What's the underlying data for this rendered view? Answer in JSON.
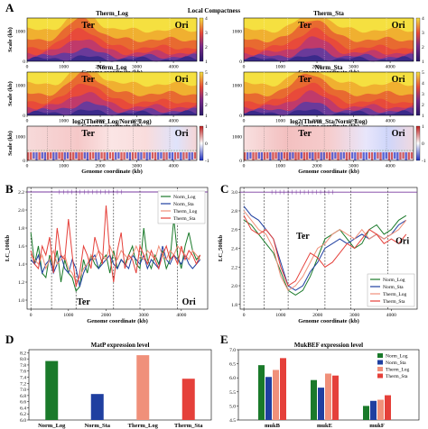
{
  "panels": {
    "A": "A",
    "B": "B",
    "C": "C",
    "D": "D",
    "E": "E"
  },
  "section_title": "Local Compactness",
  "region_labels": {
    "ter": "Ter",
    "ori": "Ori"
  },
  "colors": {
    "Norm_Log": "#1a7a2a",
    "Norm_Sta": "#1f3fa0",
    "Therm_Log": "#f0907a",
    "Therm_Sta": "#e5403a",
    "heat_low": "#2a1a6a",
    "heat_mid": "#e84a3a",
    "heat_high": "#f5e040"
  },
  "chart_data": [
    {
      "id": "A1",
      "type": "heatmap",
      "title": "Therm_Log",
      "xlabel": "Genome coordinate (kb)",
      "ylabel": "Scale (kb)",
      "xticks": [
        0,
        1000,
        2000,
        3000,
        4000
      ],
      "yticks": [
        0,
        1000
      ],
      "colorbar": [
        1,
        2,
        3,
        4
      ],
      "ter_center": 1500
    },
    {
      "id": "A2",
      "type": "heatmap",
      "title": "Therm_Sta",
      "xlabel": "Genome coordinate (kb)",
      "ylabel": "",
      "xticks": [
        0,
        1000,
        2000,
        3000,
        4000
      ],
      "yticks": [
        0,
        1000
      ],
      "colorbar": [
        1,
        2,
        3,
        4
      ],
      "ter_center": 1900
    },
    {
      "id": "A3",
      "type": "heatmap",
      "title": "Norm_Log",
      "xlabel": "Genome coordinate (kb)",
      "ylabel": "Scale (kb)",
      "xticks": [
        0,
        1000,
        2000,
        3000,
        4000
      ],
      "yticks": [
        0,
        1000
      ],
      "colorbar": [
        1,
        2,
        3,
        4,
        5
      ],
      "ter_center": 1600
    },
    {
      "id": "A4",
      "type": "heatmap",
      "title": "Norm_Sta",
      "xlabel": "Genome coordinate (kb)",
      "ylabel": "",
      "xticks": [
        0,
        1000,
        2000,
        3000,
        4000
      ],
      "yticks": [
        0,
        1000
      ],
      "colorbar": [
        1,
        2,
        3,
        4,
        5
      ],
      "ter_center": 1800
    },
    {
      "id": "A5",
      "type": "heatmap",
      "title": "log2(Therm_Log/Norm_Log)",
      "xlabel": "Genome coordinate (kb)",
      "ylabel": "Scale (kb)",
      "xticks": [
        0,
        1000,
        2000,
        3000,
        4000
      ],
      "yticks": [
        0,
        1000
      ],
      "colorbar": [
        -1,
        0,
        1
      ]
    },
    {
      "id": "A6",
      "type": "heatmap",
      "title": "log2(Therm_Sta/Norm_Log)",
      "xlabel": "Genome coordinate (kb)",
      "ylabel": "",
      "xticks": [
        0,
        1000,
        2000,
        3000,
        4000
      ],
      "yticks": [
        0,
        1000
      ],
      "colorbar": [
        -1,
        0,
        1
      ]
    },
    {
      "id": "B",
      "type": "line",
      "xlabel": "Genome coordinate (kb)",
      "ylabel": "LC_100kb",
      "xlim": [
        -100,
        4700
      ],
      "ylim": [
        0.9,
        2.25
      ],
      "xticks": [
        0,
        1000,
        2000,
        3000,
        4000
      ],
      "yticks": [
        1.0,
        1.2,
        1.4,
        1.6,
        1.8,
        2.0,
        2.2
      ],
      "vlines": [
        0,
        550,
        1200,
        2200,
        2900,
        3900
      ],
      "legend": "top-right",
      "x": [
        0,
        100,
        200,
        300,
        400,
        500,
        600,
        700,
        800,
        900,
        1000,
        1100,
        1200,
        1300,
        1400,
        1500,
        1600,
        1700,
        1800,
        1900,
        2000,
        2100,
        2200,
        2300,
        2400,
        2500,
        2600,
        2700,
        2800,
        2900,
        3000,
        3100,
        3200,
        3300,
        3400,
        3500,
        3600,
        3700,
        3800,
        3900,
        4000,
        4100,
        4200,
        4300,
        4400,
        4500
      ],
      "series": [
        {
          "name": "Norm_Log",
          "values": [
            1.75,
            1.4,
            1.6,
            1.3,
            1.25,
            1.5,
            1.35,
            1.55,
            1.2,
            1.45,
            1.3,
            1.25,
            1.1,
            1.15,
            1.45,
            1.3,
            1.5,
            1.4,
            1.35,
            1.45,
            1.5,
            1.3,
            1.55,
            1.35,
            1.45,
            1.4,
            1.5,
            1.6,
            1.4,
            1.35,
            1.8,
            1.45,
            1.35,
            1.5,
            1.4,
            1.55,
            1.35,
            1.45,
            1.9,
            1.5,
            1.35,
            1.6,
            1.75,
            1.55,
            1.45,
            1.5
          ]
        },
        {
          "name": "Norm_Sta",
          "values": [
            1.45,
            1.4,
            1.5,
            1.3,
            1.4,
            1.45,
            1.3,
            1.4,
            1.5,
            1.35,
            1.3,
            1.45,
            1.35,
            1.15,
            1.3,
            1.4,
            1.45,
            1.5,
            1.35,
            1.4,
            1.45,
            1.5,
            1.4,
            1.35,
            1.45,
            1.4,
            1.35,
            1.5,
            1.45,
            1.4,
            1.5,
            1.35,
            1.45,
            1.4,
            1.35,
            1.6,
            1.45,
            1.4,
            1.5,
            1.45,
            1.4,
            1.5,
            1.4,
            1.35,
            1.4,
            1.45
          ]
        },
        {
          "name": "Therm_Log",
          "values": [
            1.5,
            1.45,
            1.4,
            1.5,
            1.35,
            1.45,
            1.55,
            1.4,
            1.45,
            1.5,
            1.35,
            1.3,
            1.2,
            1.25,
            1.35,
            1.4,
            1.5,
            1.45,
            1.55,
            1.5,
            1.45,
            1.6,
            1.5,
            1.45,
            1.55,
            1.5,
            1.45,
            1.5,
            1.6,
            1.5,
            1.45,
            1.55,
            1.5,
            1.45,
            1.6,
            1.5,
            1.45,
            1.55,
            1.5,
            1.6,
            1.55,
            1.5,
            1.45,
            1.55,
            1.5,
            1.45
          ]
        },
        {
          "name": "Therm_Sta",
          "values": [
            1.55,
            1.4,
            1.35,
            1.6,
            1.5,
            1.7,
            1.3,
            1.8,
            1.5,
            1.45,
            1.9,
            1.5,
            1.15,
            1.3,
            1.6,
            1.5,
            1.35,
            1.7,
            1.55,
            1.4,
            2.05,
            1.5,
            1.2,
            1.55,
            1.75,
            1.35,
            1.5,
            1.45,
            1.3,
            1.6,
            1.5,
            1.4,
            1.55,
            1.45,
            1.35,
            1.5,
            1.6,
            1.45,
            1.5,
            1.4,
            1.6,
            1.45,
            1.55,
            1.5,
            1.4,
            1.5
          ]
        }
      ],
      "annotations": [
        {
          "text": "Ter",
          "x": 1400,
          "y": 0.95
        },
        {
          "text": "Ori",
          "x": 4200,
          "y": 0.95
        }
      ]
    },
    {
      "id": "C",
      "type": "line",
      "xlabel": "Genome coordinate (kb)",
      "ylabel": "LC_500kb",
      "xlim": [
        -100,
        4700
      ],
      "ylim": [
        1.75,
        3.05
      ],
      "xticks": [
        0,
        1000,
        2000,
        3000,
        4000
      ],
      "yticks": [
        1.8,
        2.0,
        2.2,
        2.4,
        2.6,
        2.8,
        3.0
      ],
      "vlines": [
        0,
        550,
        1200,
        2200,
        2900,
        3900
      ],
      "legend": "bottom-right",
      "x": [
        0,
        200,
        400,
        600,
        800,
        1000,
        1200,
        1400,
        1600,
        1800,
        2000,
        2200,
        2400,
        2600,
        2800,
        3000,
        3200,
        3400,
        3600,
        3800,
        4000,
        4200,
        4400
      ],
      "series": [
        {
          "name": "Norm_Log",
          "values": [
            2.7,
            2.65,
            2.55,
            2.45,
            2.35,
            2.15,
            1.95,
            1.9,
            1.95,
            2.1,
            2.3,
            2.5,
            2.55,
            2.6,
            2.5,
            2.4,
            2.45,
            2.6,
            2.65,
            2.55,
            2.6,
            2.7,
            2.75
          ]
        },
        {
          "name": "Norm_Sta",
          "values": [
            2.85,
            2.75,
            2.7,
            2.6,
            2.5,
            2.25,
            2.0,
            1.95,
            2.0,
            2.15,
            2.25,
            2.4,
            2.45,
            2.5,
            2.45,
            2.5,
            2.55,
            2.5,
            2.55,
            2.5,
            2.55,
            2.65,
            2.7
          ]
        },
        {
          "name": "Therm_Log",
          "values": [
            2.8,
            2.7,
            2.6,
            2.55,
            2.4,
            2.1,
            1.95,
            2.0,
            2.1,
            2.25,
            2.4,
            2.45,
            2.55,
            2.6,
            2.55,
            2.5,
            2.6,
            2.5,
            2.55,
            2.5,
            2.55,
            2.6,
            2.7
          ]
        },
        {
          "name": "Therm_Sta",
          "values": [
            2.75,
            2.6,
            2.55,
            2.6,
            2.5,
            2.2,
            2.0,
            2.05,
            2.2,
            2.35,
            2.3,
            2.2,
            2.25,
            2.35,
            2.45,
            2.4,
            2.5,
            2.6,
            2.55,
            2.45,
            2.5,
            2.45,
            2.55
          ]
        }
      ],
      "annotations": [
        {
          "text": "Ter",
          "x": 1600,
          "y": 2.5
        },
        {
          "text": "Ori",
          "x": 4300,
          "y": 2.45
        }
      ]
    },
    {
      "id": "D",
      "type": "bar",
      "title": "MatP expression level",
      "categories": [
        "Norm_Log",
        "Norm_Sta",
        "Therm_Log",
        "Therm_Sta"
      ],
      "values": [
        7.93,
        6.85,
        8.12,
        7.35
      ],
      "ylim": [
        6.0,
        8.3
      ],
      "yticks": [
        6.0,
        6.2,
        6.4,
        6.6,
        6.8,
        7.0,
        7.2,
        7.4,
        7.6,
        7.8,
        8.0,
        8.2
      ]
    },
    {
      "id": "E",
      "type": "bar",
      "title": "MukBEF expression level",
      "categories": [
        "mukB",
        "mukE",
        "mukF"
      ],
      "series": [
        {
          "name": "Norm_Log",
          "values": [
            6.45,
            5.92,
            5.0
          ]
        },
        {
          "name": "Norm_Sta",
          "values": [
            6.03,
            5.65,
            5.18
          ]
        },
        {
          "name": "Therm_Log",
          "values": [
            6.28,
            6.15,
            5.22
          ]
        },
        {
          "name": "Therm_Sta",
          "values": [
            6.7,
            6.08,
            5.38
          ]
        }
      ],
      "ylim": [
        4.5,
        7.0
      ],
      "yticks": [
        4.5,
        5.0,
        5.5,
        6.0,
        6.5,
        7.0
      ],
      "legend": "top-right"
    }
  ]
}
